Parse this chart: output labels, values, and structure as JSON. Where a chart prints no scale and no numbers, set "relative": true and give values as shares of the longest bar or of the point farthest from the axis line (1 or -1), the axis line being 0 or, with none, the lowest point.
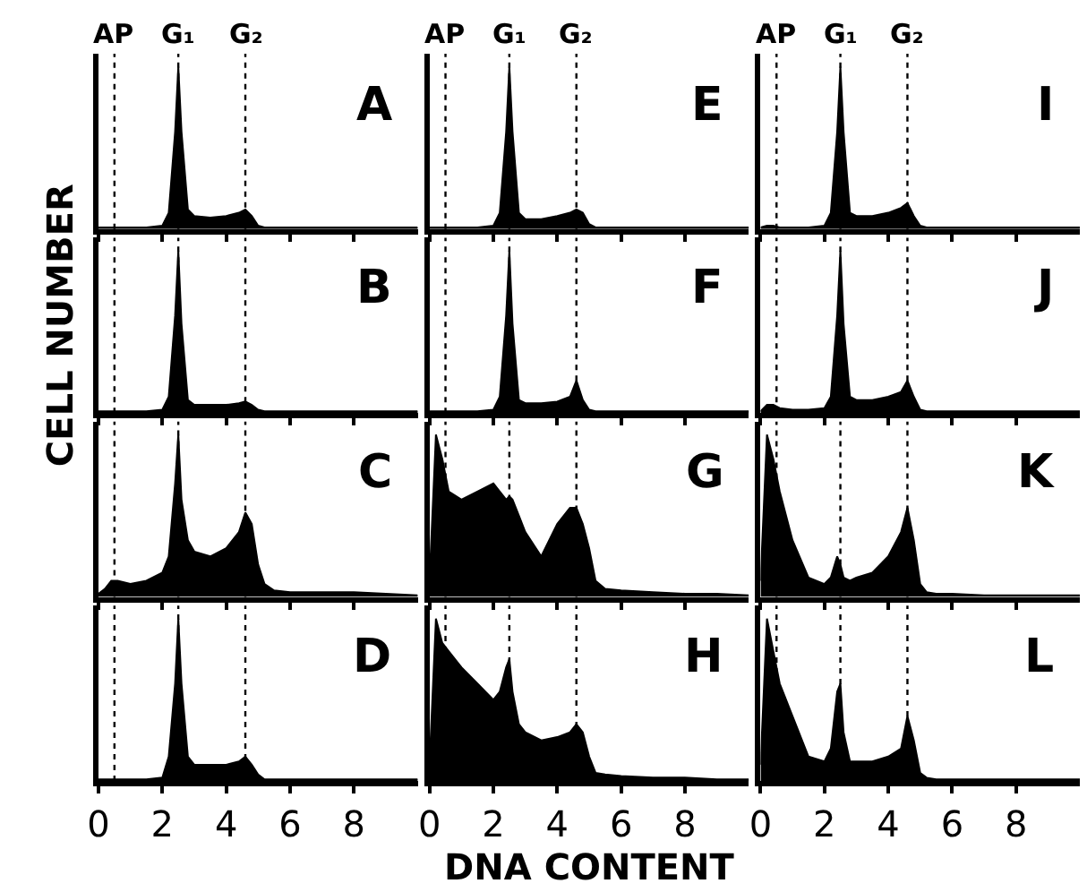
{
  "chart_data": [
    {
      "type": "area",
      "relative": true,
      "annotations": [
        "A"
      ],
      "tick_labels": false,
      "xlim": [
        0,
        10
      ],
      "xticks": [
        0,
        2,
        4,
        6,
        8
      ],
      "x": [
        0,
        0.2,
        0.4,
        0.6,
        1,
        1.5,
        2,
        2.2,
        2.4,
        2.5,
        2.6,
        2.8,
        3,
        3.5,
        4,
        4.4,
        4.6,
        4.8,
        5,
        5.2,
        5.5,
        6,
        7,
        8,
        9,
        10
      ],
      "series": [
        {
          "color": "#000000",
          "values": [
            0.01,
            0.01,
            0.01,
            0.01,
            0.01,
            0.01,
            0.02,
            0.1,
            0.6,
            1,
            0.6,
            0.12,
            0.08,
            0.07,
            0.08,
            0.1,
            0.12,
            0.08,
            0.02,
            0.01,
            0.01,
            0.01,
            0.01,
            0.01,
            0.01,
            0.01
          ]
        }
      ],
      "ref_lines": [
        {
          "axis": "x",
          "value": 0.5,
          "label": "AP",
          "color": "#000000",
          "line_style": "dotted"
        },
        {
          "axis": "x",
          "value": 2.5,
          "label": "G₁",
          "color": "#000000",
          "line_style": "dotted"
        },
        {
          "axis": "x",
          "value": 4.6,
          "label": "G₂",
          "color": "#000000",
          "line_style": "dotted"
        }
      ]
    },
    {
      "type": "area",
      "relative": true,
      "annotations": [
        "E"
      ],
      "tick_labels": false,
      "xlim": [
        0,
        10
      ],
      "xticks": [
        0,
        2,
        4,
        6,
        8
      ],
      "x": [
        0,
        0.2,
        0.4,
        0.6,
        1,
        1.5,
        2,
        2.2,
        2.4,
        2.5,
        2.6,
        2.8,
        3,
        3.5,
        4,
        4.4,
        4.6,
        4.8,
        5,
        5.2,
        5.5,
        6,
        7,
        8,
        9,
        10
      ],
      "series": [
        {
          "color": "#000000",
          "values": [
            0.01,
            0.01,
            0.01,
            0.01,
            0.01,
            0.01,
            0.02,
            0.1,
            0.6,
            1,
            0.6,
            0.1,
            0.06,
            0.06,
            0.08,
            0.1,
            0.12,
            0.1,
            0.03,
            0.01,
            0.01,
            0.01,
            0.01,
            0.01,
            0.01,
            0.01
          ]
        }
      ],
      "ref_lines": [
        {
          "axis": "x",
          "value": 0.5,
          "label": "AP",
          "color": "#000000",
          "line_style": "dotted"
        },
        {
          "axis": "x",
          "value": 2.5,
          "label": "G₁",
          "color": "#000000",
          "line_style": "dotted"
        },
        {
          "axis": "x",
          "value": 4.6,
          "label": "G₂",
          "color": "#000000",
          "line_style": "dotted"
        }
      ]
    },
    {
      "type": "area",
      "relative": true,
      "annotations": [
        "I"
      ],
      "tick_labels": false,
      "xlim": [
        0,
        10
      ],
      "xticks": [
        0,
        2,
        4,
        6,
        8
      ],
      "x": [
        0,
        0.2,
        0.4,
        0.6,
        1,
        1.5,
        2,
        2.2,
        2.4,
        2.5,
        2.6,
        2.8,
        3,
        3.5,
        4,
        4.4,
        4.6,
        4.8,
        5,
        5.2,
        5.5,
        6,
        7,
        8,
        9,
        10
      ],
      "series": [
        {
          "color": "#000000",
          "values": [
            0.01,
            0.02,
            0.02,
            0.01,
            0.01,
            0.01,
            0.02,
            0.1,
            0.6,
            1,
            0.6,
            0.1,
            0.08,
            0.08,
            0.1,
            0.13,
            0.16,
            0.08,
            0.02,
            0.01,
            0.01,
            0.01,
            0.01,
            0.01,
            0.01,
            0.01
          ]
        }
      ],
      "ref_lines": [
        {
          "axis": "x",
          "value": 0.5,
          "label": "AP",
          "color": "#000000",
          "line_style": "dotted"
        },
        {
          "axis": "x",
          "value": 2.5,
          "label": "G₁",
          "color": "#000000",
          "line_style": "dotted"
        },
        {
          "axis": "x",
          "value": 4.6,
          "label": "G₂",
          "color": "#000000",
          "line_style": "dotted"
        }
      ]
    },
    {
      "type": "area",
      "relative": true,
      "annotations": [
        "B"
      ],
      "ylabel": "CELL NUMBER",
      "tick_labels": false,
      "xlim": [
        0,
        10
      ],
      "xticks": [
        0,
        2,
        4,
        6,
        8
      ],
      "x": [
        0,
        0.2,
        0.4,
        0.6,
        1,
        1.5,
        2,
        2.2,
        2.4,
        2.5,
        2.6,
        2.8,
        3,
        3.5,
        4,
        4.4,
        4.6,
        4.8,
        5,
        5.2,
        5.5,
        6,
        7,
        8,
        9,
        10
      ],
      "series": [
        {
          "color": "#000000",
          "values": [
            0.01,
            0.01,
            0.01,
            0.01,
            0.01,
            0.01,
            0.02,
            0.1,
            0.6,
            1,
            0.55,
            0.08,
            0.05,
            0.05,
            0.05,
            0.06,
            0.07,
            0.05,
            0.02,
            0.01,
            0.01,
            0.01,
            0.01,
            0.01,
            0.01,
            0.01
          ]
        }
      ],
      "ref_lines": [
        {
          "axis": "x",
          "value": 0.5,
          "color": "#000000",
          "line_style": "dotted"
        },
        {
          "axis": "x",
          "value": 2.5,
          "color": "#000000",
          "line_style": "dotted"
        },
        {
          "axis": "x",
          "value": 4.6,
          "color": "#000000",
          "line_style": "dotted"
        }
      ]
    },
    {
      "type": "area",
      "relative": true,
      "annotations": [
        "F"
      ],
      "tick_labels": false,
      "xlim": [
        0,
        10
      ],
      "xticks": [
        0,
        2,
        4,
        6,
        8
      ],
      "x": [
        0,
        0.2,
        0.4,
        0.6,
        1,
        1.5,
        2,
        2.2,
        2.4,
        2.5,
        2.6,
        2.8,
        3,
        3.5,
        4,
        4.4,
        4.6,
        4.8,
        5,
        5.2,
        5.5,
        6,
        7,
        8,
        9,
        10
      ],
      "series": [
        {
          "color": "#000000",
          "values": [
            0.01,
            0.01,
            0.01,
            0.01,
            0.01,
            0.01,
            0.02,
            0.1,
            0.6,
            1,
            0.55,
            0.08,
            0.06,
            0.06,
            0.07,
            0.1,
            0.2,
            0.08,
            0.02,
            0.01,
            0.01,
            0.01,
            0.01,
            0.01,
            0.01,
            0.01
          ]
        }
      ],
      "ref_lines": [
        {
          "axis": "x",
          "value": 0.5,
          "color": "#000000",
          "line_style": "dotted"
        },
        {
          "axis": "x",
          "value": 2.5,
          "color": "#000000",
          "line_style": "dotted"
        },
        {
          "axis": "x",
          "value": 4.6,
          "color": "#000000",
          "line_style": "dotted"
        }
      ]
    },
    {
      "type": "area",
      "relative": true,
      "annotations": [
        "J"
      ],
      "tick_labels": false,
      "xlim": [
        0,
        10
      ],
      "xticks": [
        0,
        2,
        4,
        6,
        8
      ],
      "x": [
        0,
        0.2,
        0.4,
        0.6,
        1,
        1.5,
        2,
        2.2,
        2.4,
        2.5,
        2.6,
        2.8,
        3,
        3.5,
        4,
        4.4,
        4.6,
        4.8,
        5,
        5.2,
        5.5,
        6,
        7,
        8,
        9,
        10
      ],
      "series": [
        {
          "color": "#000000",
          "values": [
            0.01,
            0.05,
            0.05,
            0.03,
            0.02,
            0.02,
            0.03,
            0.1,
            0.6,
            1,
            0.55,
            0.1,
            0.08,
            0.08,
            0.1,
            0.13,
            0.2,
            0.1,
            0.02,
            0.01,
            0.01,
            0.01,
            0.01,
            0.01,
            0.01,
            0.01
          ]
        }
      ],
      "ref_lines": [
        {
          "axis": "x",
          "value": 0.5,
          "color": "#000000",
          "line_style": "dotted"
        },
        {
          "axis": "x",
          "value": 2.5,
          "color": "#000000",
          "line_style": "dotted"
        },
        {
          "axis": "x",
          "value": 4.6,
          "color": "#000000",
          "line_style": "dotted"
        }
      ]
    },
    {
      "type": "area",
      "relative": true,
      "annotations": [
        "C"
      ],
      "tick_labels": false,
      "xlim": [
        0,
        10
      ],
      "xticks": [
        0,
        2,
        4,
        6,
        8
      ],
      "x": [
        0,
        0.2,
        0.4,
        0.6,
        1,
        1.5,
        2,
        2.2,
        2.4,
        2.5,
        2.6,
        2.8,
        3,
        3.5,
        4,
        4.4,
        4.6,
        4.8,
        5,
        5.2,
        5.5,
        6,
        7,
        8,
        9,
        10
      ],
      "series": [
        {
          "color": "#000000",
          "values": [
            0.02,
            0.05,
            0.1,
            0.1,
            0.08,
            0.1,
            0.15,
            0.25,
            0.7,
            1,
            0.6,
            0.35,
            0.28,
            0.25,
            0.3,
            0.4,
            0.52,
            0.45,
            0.2,
            0.08,
            0.04,
            0.03,
            0.03,
            0.03,
            0.02,
            0.01
          ]
        }
      ],
      "ref_lines": [
        {
          "axis": "x",
          "value": 0.5,
          "color": "#000000",
          "line_style": "dotted"
        },
        {
          "axis": "x",
          "value": 2.5,
          "color": "#000000",
          "line_style": "dotted"
        },
        {
          "axis": "x",
          "value": 4.6,
          "color": "#000000",
          "line_style": "dotted"
        }
      ]
    },
    {
      "type": "area",
      "relative": true,
      "annotations": [
        "G"
      ],
      "tick_labels": false,
      "xlim": [
        0,
        10
      ],
      "xticks": [
        0,
        2,
        4,
        6,
        8
      ],
      "x": [
        0,
        0.2,
        0.4,
        0.6,
        1,
        1.5,
        2,
        2.2,
        2.4,
        2.5,
        2.6,
        2.8,
        3,
        3.5,
        4,
        4.4,
        4.6,
        4.8,
        5,
        5.2,
        5.5,
        6,
        7,
        8,
        9,
        10
      ],
      "series": [
        {
          "color": "#000000",
          "values": [
            0.1,
            1,
            0.85,
            0.65,
            0.6,
            0.65,
            0.7,
            0.65,
            0.6,
            0.62,
            0.6,
            0.5,
            0.4,
            0.25,
            0.45,
            0.55,
            0.55,
            0.45,
            0.3,
            0.1,
            0.05,
            0.04,
            0.03,
            0.02,
            0.02,
            0.01
          ]
        }
      ],
      "ref_lines": [
        {
          "axis": "x",
          "value": 0.5,
          "color": "#000000",
          "line_style": "dotted"
        },
        {
          "axis": "x",
          "value": 2.5,
          "color": "#000000",
          "line_style": "dotted"
        },
        {
          "axis": "x",
          "value": 4.6,
          "color": "#000000",
          "line_style": "dotted"
        }
      ]
    },
    {
      "type": "area",
      "relative": true,
      "annotations": [
        "K"
      ],
      "tick_labels": false,
      "xlim": [
        0,
        10
      ],
      "xticks": [
        0,
        2,
        4,
        6,
        8
      ],
      "x": [
        0,
        0.2,
        0.4,
        0.6,
        1,
        1.5,
        2,
        2.2,
        2.4,
        2.5,
        2.6,
        2.8,
        3,
        3.5,
        4,
        4.4,
        4.6,
        4.8,
        5,
        5.2,
        5.5,
        6,
        7,
        8,
        9,
        10
      ],
      "series": [
        {
          "color": "#000000",
          "values": [
            0.1,
            1,
            0.85,
            0.65,
            0.35,
            0.12,
            0.08,
            0.12,
            0.25,
            0.2,
            0.12,
            0.1,
            0.12,
            0.15,
            0.25,
            0.4,
            0.55,
            0.35,
            0.08,
            0.03,
            0.02,
            0.02,
            0.01,
            0.01,
            0.01,
            0.01
          ]
        }
      ],
      "ref_lines": [
        {
          "axis": "x",
          "value": 0.5,
          "color": "#000000",
          "line_style": "dotted"
        },
        {
          "axis": "x",
          "value": 2.5,
          "color": "#000000",
          "line_style": "dotted"
        },
        {
          "axis": "x",
          "value": 4.6,
          "color": "#000000",
          "line_style": "dotted"
        }
      ]
    },
    {
      "type": "area",
      "relative": true,
      "annotations": [
        "D"
      ],
      "tick_labels": "x",
      "xlim": [
        0,
        10
      ],
      "xticks": [
        0,
        2,
        4,
        6,
        8
      ],
      "x": [
        0,
        0.2,
        0.4,
        0.6,
        1,
        1.5,
        2,
        2.2,
        2.4,
        2.5,
        2.6,
        2.8,
        3,
        3.5,
        4,
        4.4,
        4.6,
        4.8,
        5,
        5.2,
        5.5,
        6,
        7,
        8,
        9,
        10
      ],
      "series": [
        {
          "color": "#000000",
          "values": [
            0.01,
            0.01,
            0.01,
            0.01,
            0.01,
            0.01,
            0.02,
            0.15,
            0.6,
            1,
            0.6,
            0.15,
            0.1,
            0.1,
            0.1,
            0.12,
            0.15,
            0.1,
            0.04,
            0.01,
            0.01,
            0.01,
            0.01,
            0.01,
            0.01,
            0.01
          ]
        }
      ],
      "ref_lines": [
        {
          "axis": "x",
          "value": 0.5,
          "color": "#000000",
          "line_style": "dotted"
        },
        {
          "axis": "x",
          "value": 2.5,
          "color": "#000000",
          "line_style": "dotted"
        },
        {
          "axis": "x",
          "value": 4.6,
          "color": "#000000",
          "line_style": "dotted"
        }
      ]
    },
    {
      "type": "area",
      "relative": true,
      "annotations": [
        "H"
      ],
      "xlabel": "DNA CONTENT",
      "tick_labels": "x",
      "xlim": [
        0,
        10
      ],
      "xticks": [
        0,
        2,
        4,
        6,
        8
      ],
      "x": [
        0,
        0.2,
        0.4,
        0.6,
        1,
        1.5,
        2,
        2.2,
        2.4,
        2.5,
        2.6,
        2.8,
        3,
        3.5,
        4,
        4.4,
        4.6,
        4.8,
        5,
        5.2,
        5.5,
        6,
        7,
        8,
        9,
        10
      ],
      "series": [
        {
          "color": "#000000",
          "values": [
            0.1,
            1,
            0.85,
            0.8,
            0.7,
            0.6,
            0.5,
            0.55,
            0.7,
            0.75,
            0.55,
            0.35,
            0.3,
            0.25,
            0.27,
            0.3,
            0.35,
            0.3,
            0.15,
            0.05,
            0.04,
            0.03,
            0.02,
            0.02,
            0.01,
            0.01
          ]
        }
      ],
      "ref_lines": [
        {
          "axis": "x",
          "value": 0.5,
          "color": "#000000",
          "line_style": "dotted"
        },
        {
          "axis": "x",
          "value": 2.5,
          "color": "#000000",
          "line_style": "dotted"
        },
        {
          "axis": "x",
          "value": 4.6,
          "color": "#000000",
          "line_style": "dotted"
        }
      ]
    },
    {
      "type": "area",
      "relative": true,
      "annotations": [
        "L"
      ],
      "tick_labels": "x",
      "xlim": [
        0,
        10
      ],
      "xticks": [
        0,
        2,
        4,
        6,
        8
      ],
      "x": [
        0,
        0.2,
        0.4,
        0.6,
        1,
        1.5,
        2,
        2.2,
        2.4,
        2.5,
        2.6,
        2.8,
        3,
        3.5,
        4,
        4.4,
        4.6,
        4.8,
        5,
        5.2,
        5.5,
        6,
        7,
        8,
        9,
        10
      ],
      "series": [
        {
          "color": "#000000",
          "values": [
            0.1,
            1,
            0.8,
            0.6,
            0.4,
            0.15,
            0.12,
            0.2,
            0.55,
            0.6,
            0.3,
            0.12,
            0.12,
            0.12,
            0.15,
            0.2,
            0.4,
            0.25,
            0.05,
            0.02,
            0.01,
            0.01,
            0.01,
            0.01,
            0.01,
            0.01
          ]
        }
      ],
      "ref_lines": [
        {
          "axis": "x",
          "value": 0.5,
          "color": "#000000",
          "line_style": "dotted"
        },
        {
          "axis": "x",
          "value": 2.5,
          "color": "#000000",
          "line_style": "dotted"
        },
        {
          "axis": "x",
          "value": 4.6,
          "color": "#000000",
          "line_style": "dotted"
        }
      ]
    }
  ]
}
